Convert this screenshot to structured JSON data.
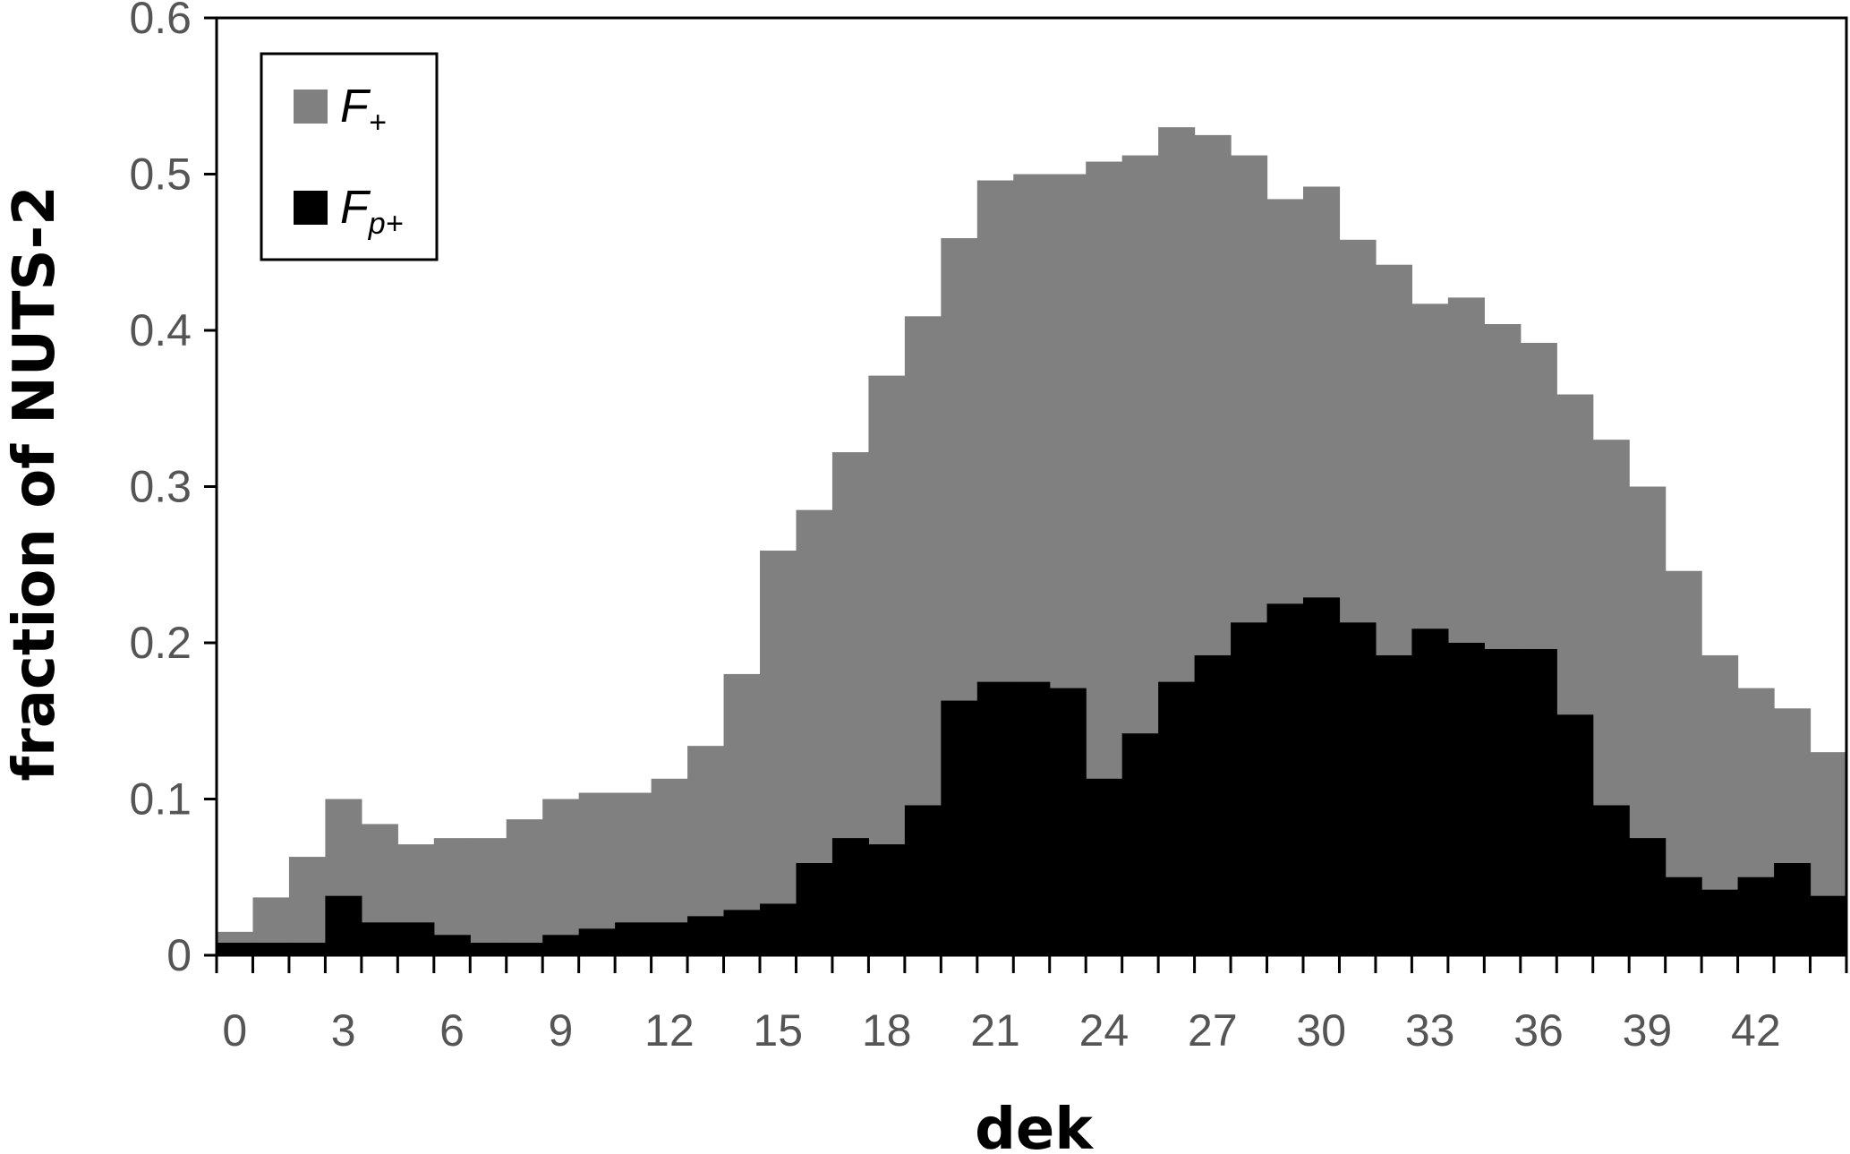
{
  "chart_data": {
    "type": "bar",
    "subtype": "overlapping-histogram",
    "xlabel": "dek",
    "ylabel": "fraction of NUTS-2",
    "ylim": [
      0,
      0.6
    ],
    "yticks": [
      "0",
      "0.1",
      "0.2",
      "0.3",
      "0.4",
      "0.5",
      "0.6"
    ],
    "xticks": [
      "0",
      "3",
      "6",
      "9",
      "12",
      "15",
      "18",
      "21",
      "24",
      "27",
      "30",
      "33",
      "36",
      "39",
      "42"
    ],
    "legend_position": "top-left",
    "grid": false,
    "x": [
      0,
      1,
      2,
      3,
      4,
      5,
      6,
      7,
      8,
      9,
      10,
      11,
      12,
      13,
      14,
      15,
      16,
      17,
      18,
      19,
      20,
      21,
      22,
      23,
      24,
      25,
      26,
      27,
      28,
      29,
      30,
      31,
      32,
      33,
      34,
      35,
      36,
      37,
      38,
      39,
      40,
      41,
      42,
      43,
      44
    ],
    "series": [
      {
        "name": "F",
        "subscript": "+",
        "color": "#808080",
        "values": [
          0.015,
          0.037,
          0.063,
          0.1,
          0.084,
          0.071,
          0.075,
          0.075,
          0.087,
          0.1,
          0.104,
          0.104,
          0.113,
          0.134,
          0.18,
          0.259,
          0.285,
          0.322,
          0.371,
          0.409,
          0.459,
          0.496,
          0.5,
          0.5,
          0.508,
          0.512,
          0.53,
          0.525,
          0.512,
          0.484,
          0.492,
          0.458,
          0.442,
          0.417,
          0.421,
          0.404,
          0.392,
          0.359,
          0.33,
          0.3,
          0.246,
          0.192,
          0.171,
          0.158,
          0.13
        ]
      },
      {
        "name": "F",
        "subscript": "p+",
        "color": "#000000",
        "values": [
          0.008,
          0.008,
          0.008,
          0.038,
          0.021,
          0.021,
          0.013,
          0.008,
          0.008,
          0.013,
          0.017,
          0.021,
          0.021,
          0.025,
          0.029,
          0.033,
          0.059,
          0.075,
          0.071,
          0.096,
          0.163,
          0.175,
          0.175,
          0.171,
          0.113,
          0.142,
          0.175,
          0.192,
          0.213,
          0.225,
          0.229,
          0.213,
          0.192,
          0.209,
          0.2,
          0.196,
          0.196,
          0.154,
          0.096,
          0.075,
          0.05,
          0.042,
          0.05,
          0.059,
          0.038
        ]
      }
    ]
  }
}
